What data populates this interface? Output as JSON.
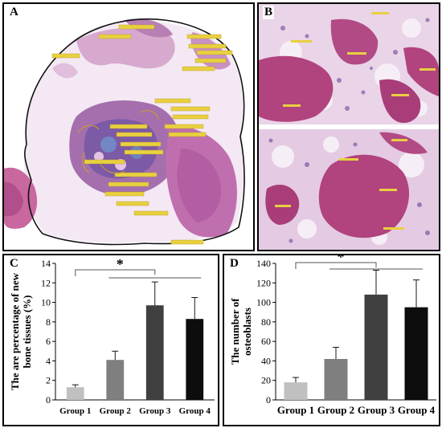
{
  "panels": {
    "a": {
      "label": "A"
    },
    "b": {
      "label": "B"
    },
    "c": {
      "label": "C"
    },
    "d": {
      "label": "D"
    }
  },
  "colors": {
    "tissue_pink": "#c27aae",
    "tissue_light": "#e6cde4",
    "bone_magenta": "#b1437e",
    "cell_purple": "#5b3a8e",
    "annotation_yellow": "#e8d040",
    "outline": "#111111",
    "bar_colors": [
      "#c0c0c0",
      "#7f7f7f",
      "#404040",
      "#0d0d0d"
    ]
  },
  "chart_data": [
    {
      "id": "c",
      "type": "bar",
      "categories": [
        "Group 1",
        "Group 2",
        "Group 3",
        "Group 4"
      ],
      "values": [
        1.3,
        4.1,
        9.7,
        8.3
      ],
      "errors": [
        0.25,
        0.9,
        2.4,
        2.2
      ],
      "ylabel": "The are percentage of new bone tissues (%)",
      "ylabel_lines": [
        "The are percentage of new",
        "bone tissues (%)"
      ],
      "ylim": [
        0,
        14
      ],
      "yticks": [
        0,
        2,
        4,
        6,
        8,
        10,
        12,
        14
      ],
      "significance": {
        "symbol": "*",
        "reference_group": "Group 1",
        "compared_groups": [
          "Group 2",
          "Group 3",
          "Group 4"
        ]
      },
      "grid": false
    },
    {
      "id": "d",
      "type": "bar",
      "categories": [
        "Group 1",
        "Group 2",
        "Group 3",
        "Group 4"
      ],
      "values": [
        18,
        42,
        108,
        95
      ],
      "errors": [
        5,
        12,
        25,
        28
      ],
      "ylabel": "The number of osteoblasts",
      "ylabel_lines": [
        "The number of",
        "osteoblasts"
      ],
      "ylim": [
        0,
        140
      ],
      "yticks": [
        0,
        20,
        40,
        60,
        80,
        100,
        120,
        140
      ],
      "significance": {
        "symbol": "*",
        "reference_group": "Group 1",
        "compared_groups": [
          "Group 2",
          "Group 3",
          "Group 4"
        ]
      },
      "grid": false
    }
  ]
}
